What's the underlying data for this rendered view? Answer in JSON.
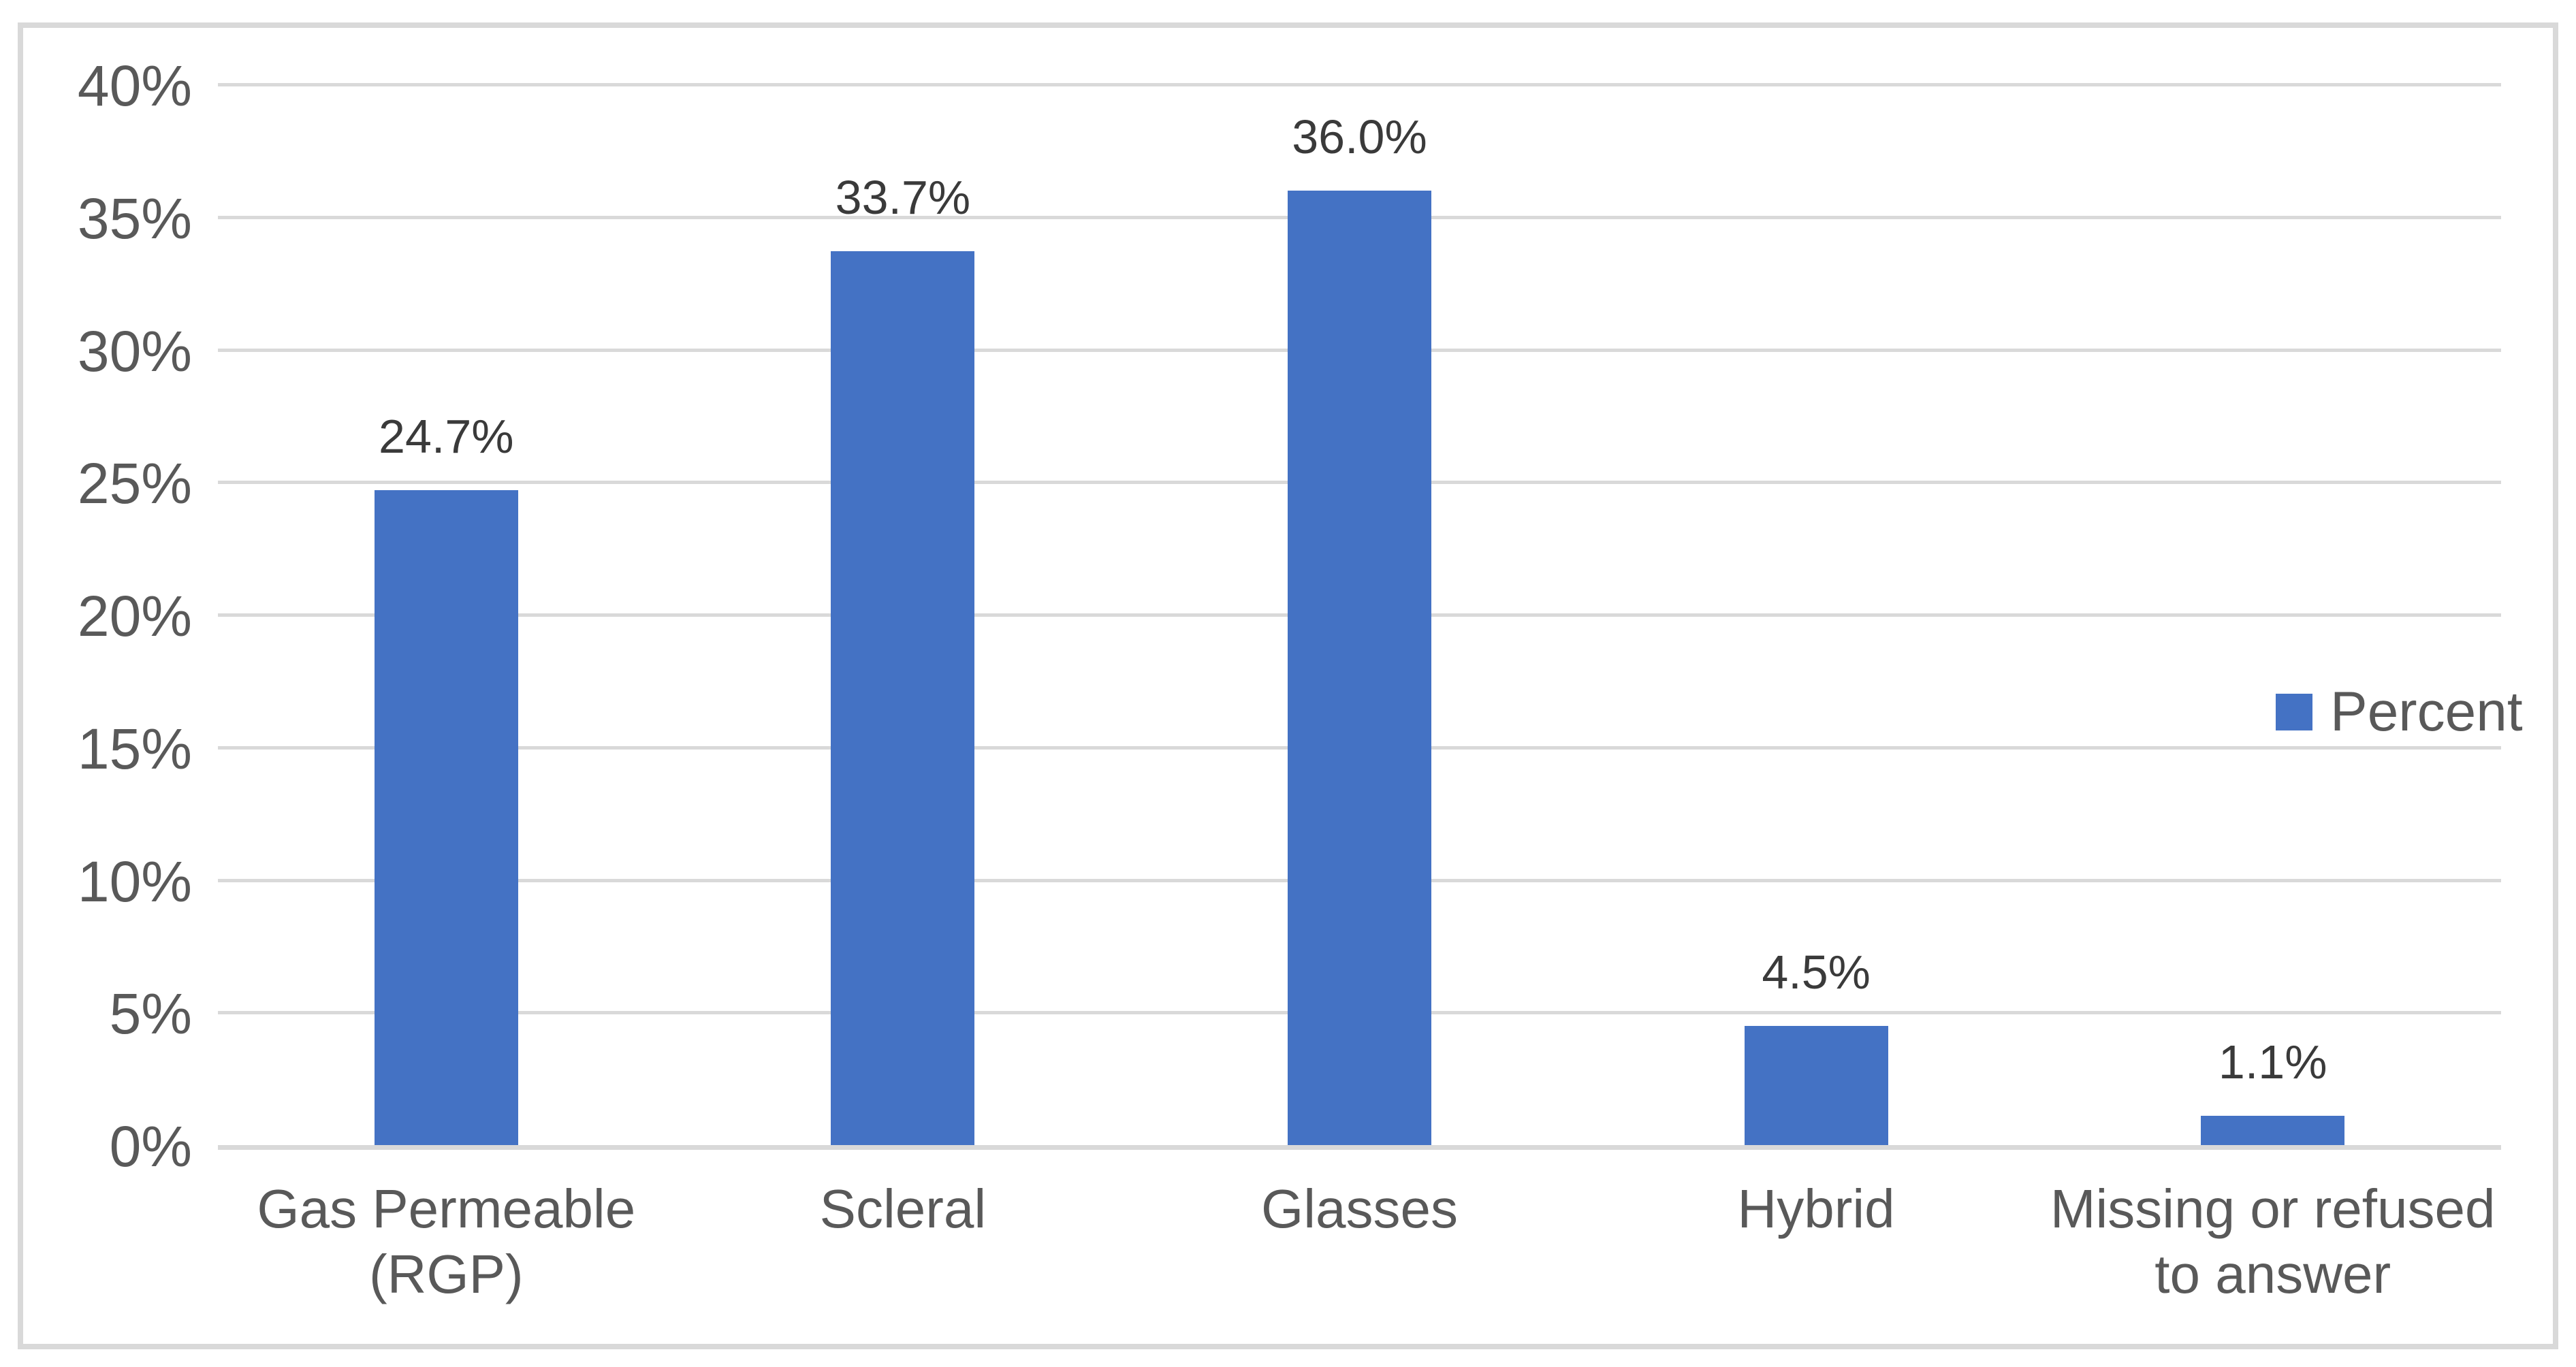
{
  "chart_data": {
    "type": "bar",
    "title": "",
    "categories": [
      "Gas Permeable (RGP)",
      "Scleral",
      "Glasses",
      "Hybrid",
      "Missing or refused to answer"
    ],
    "series": [
      {
        "name": "Percent",
        "values": [
          24.7,
          33.7,
          36.0,
          4.5,
          1.1
        ]
      }
    ],
    "data_labels": [
      "24.7%",
      "33.7%",
      "36.0%",
      "4.5%",
      "1.1%"
    ],
    "y_axis": {
      "tick_labels": [
        "40%",
        "35%",
        "30%",
        "25%",
        "20%",
        "15%",
        "10%",
        "5%",
        "0%"
      ],
      "tick_values": [
        40,
        35,
        30,
        25,
        20,
        15,
        10,
        5,
        0
      ],
      "ylim": [
        0,
        40
      ]
    },
    "grid": true,
    "legend": {
      "label": "Percent",
      "position": "right"
    },
    "colors": {
      "bar": "#4472C4",
      "gridline": "#D9D9D9",
      "axis_line": "#D9D9D9",
      "border": "#D9D9D9",
      "background": "#FFFFFF",
      "tick_text": "#595959",
      "category_text": "#595959",
      "data_label_text": "#3A3A3A",
      "legend_text": "#595959"
    }
  }
}
